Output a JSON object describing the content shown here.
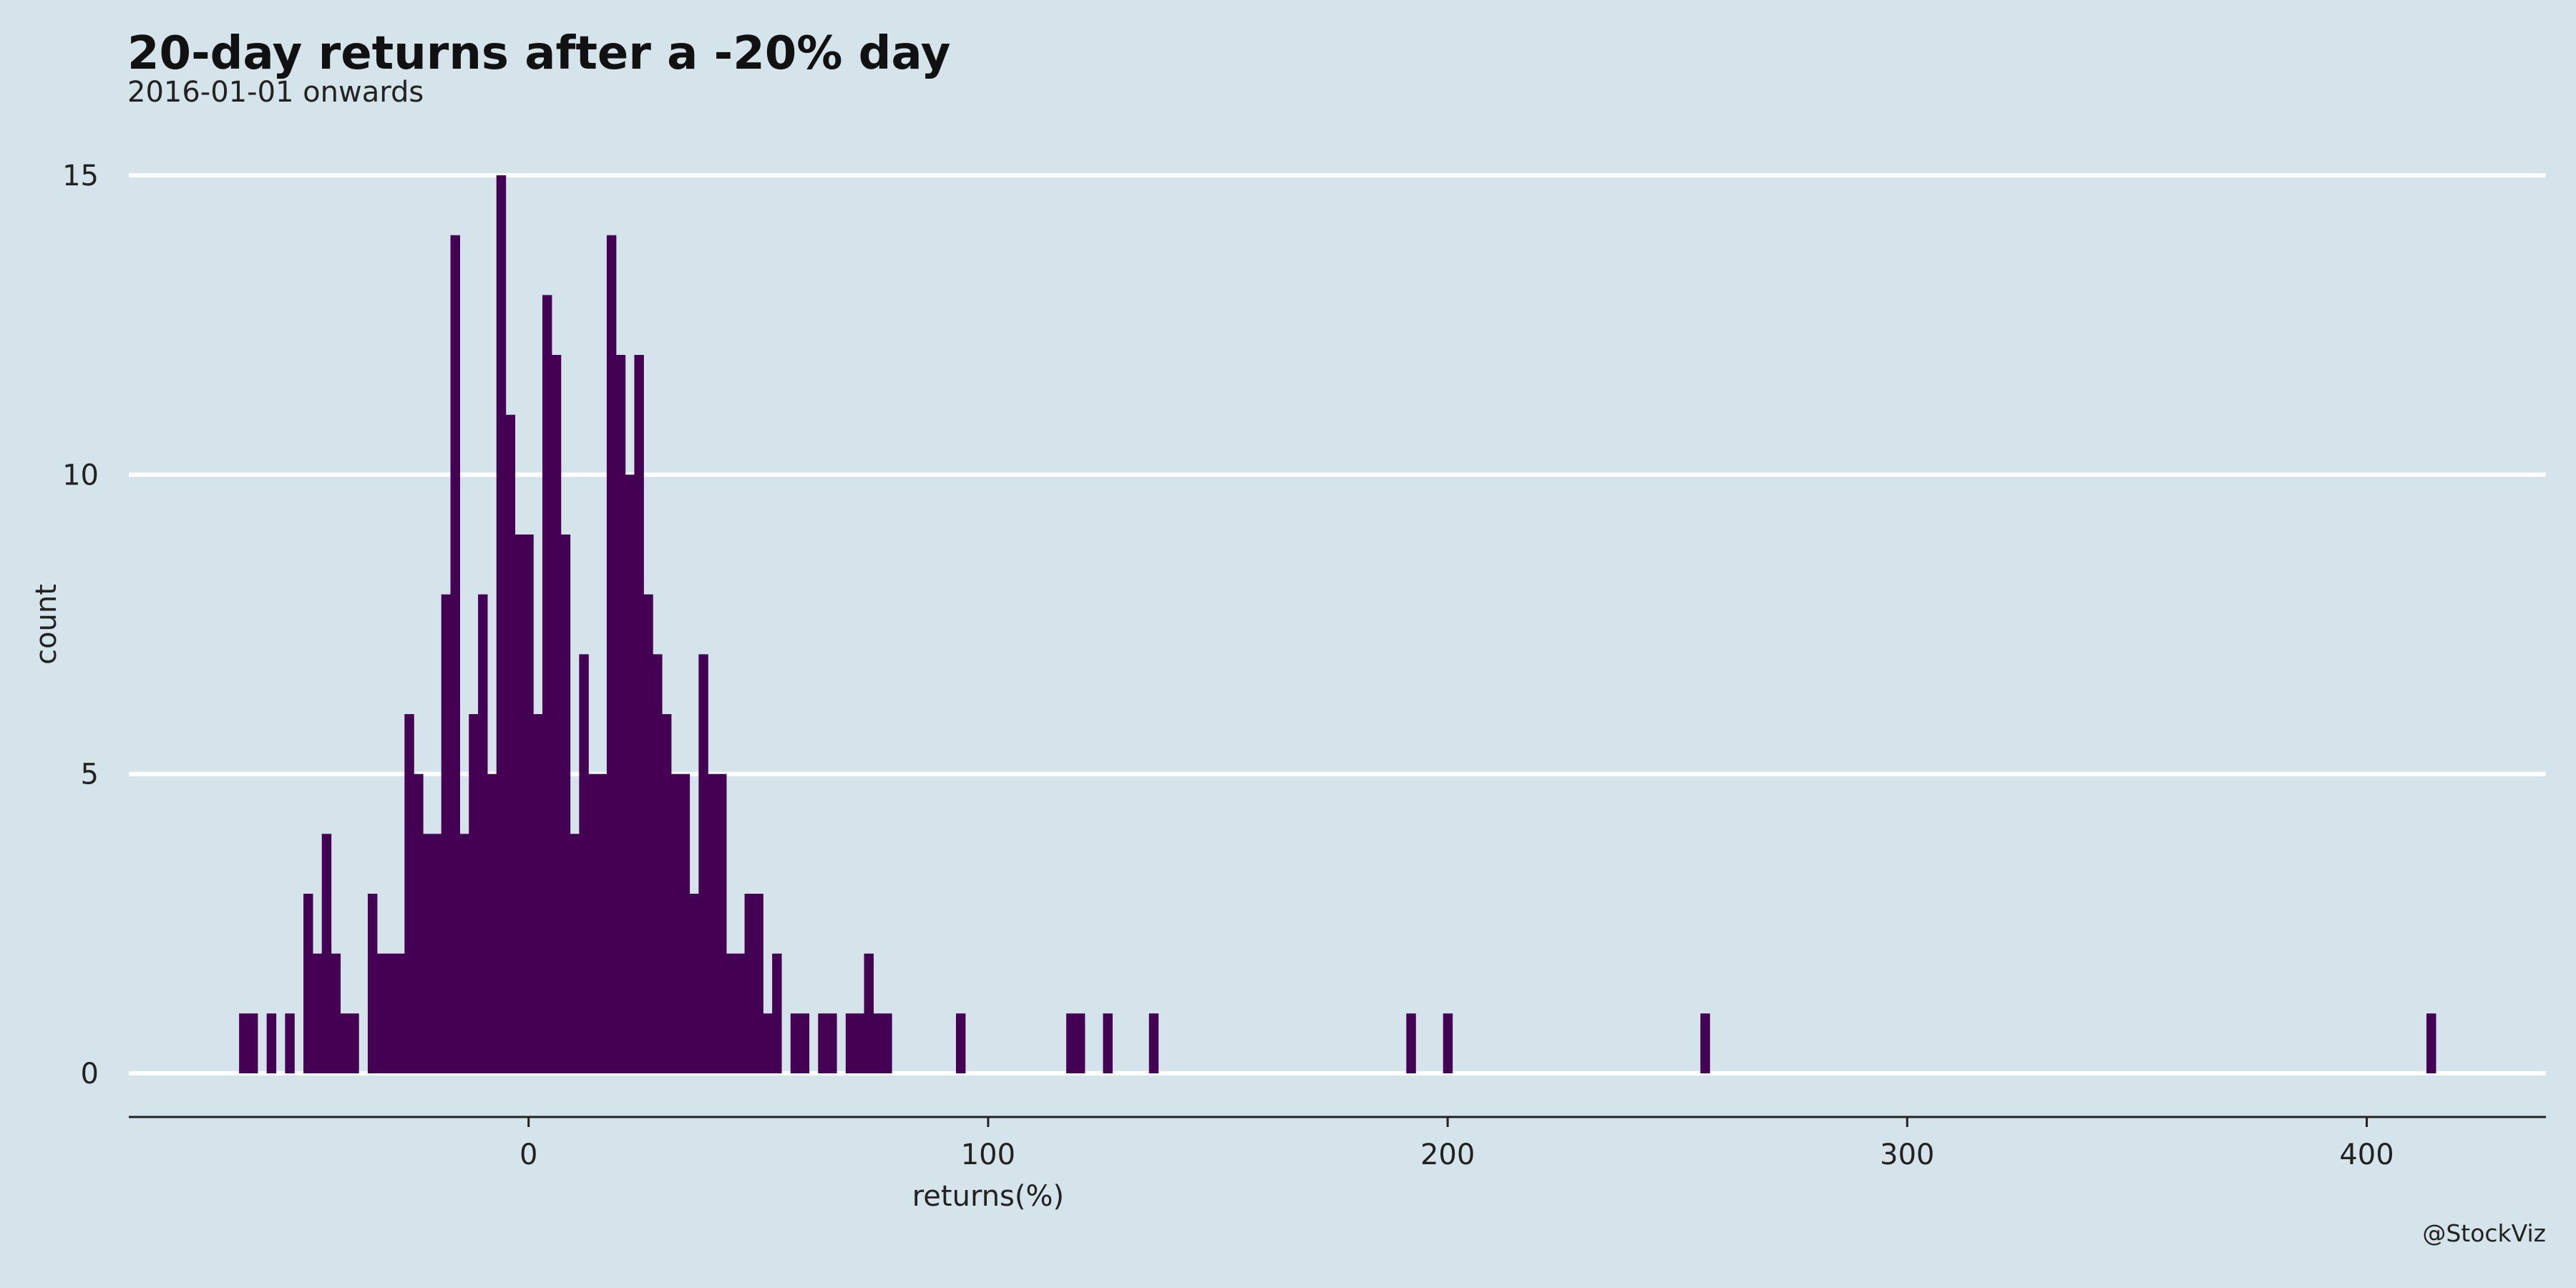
{
  "chart_data": {
    "type": "bar",
    "title": "20-day returns after a -20% day",
    "subtitle": "2016-01-01 onwards",
    "xlabel": "returns(%)",
    "ylabel": "count",
    "caption": "@StockViz",
    "xlim": [
      -87,
      439
    ],
    "ylim": [
      0,
      15
    ],
    "x_ticks": [
      0,
      100,
      200,
      300,
      400
    ],
    "y_ticks": [
      0,
      5,
      10,
      15
    ],
    "bin_width": 2,
    "grid": "horizontal",
    "bar_color": "#440154",
    "background_color": "#d5e4eb",
    "grid_color": "#ffffff",
    "bins": [
      {
        "x": -62,
        "count": 1
      },
      {
        "x": -60,
        "count": 1
      },
      {
        "x": -56,
        "count": 1
      },
      {
        "x": -52,
        "count": 1
      },
      {
        "x": -48,
        "count": 3
      },
      {
        "x": -46,
        "count": 2
      },
      {
        "x": -44,
        "count": 4
      },
      {
        "x": -42,
        "count": 2
      },
      {
        "x": -40,
        "count": 1
      },
      {
        "x": -38,
        "count": 1
      },
      {
        "x": -34,
        "count": 3
      },
      {
        "x": -32,
        "count": 2
      },
      {
        "x": -30,
        "count": 2
      },
      {
        "x": -28,
        "count": 2
      },
      {
        "x": -26,
        "count": 6
      },
      {
        "x": -24,
        "count": 5
      },
      {
        "x": -22,
        "count": 4
      },
      {
        "x": -20,
        "count": 4
      },
      {
        "x": -18,
        "count": 8
      },
      {
        "x": -16,
        "count": 14
      },
      {
        "x": -14,
        "count": 4
      },
      {
        "x": -12,
        "count": 6
      },
      {
        "x": -10,
        "count": 8
      },
      {
        "x": -8,
        "count": 5
      },
      {
        "x": -6,
        "count": 15
      },
      {
        "x": -4,
        "count": 11
      },
      {
        "x": -2,
        "count": 9
      },
      {
        "x": 0,
        "count": 9
      },
      {
        "x": 2,
        "count": 6
      },
      {
        "x": 4,
        "count": 13
      },
      {
        "x": 6,
        "count": 12
      },
      {
        "x": 8,
        "count": 9
      },
      {
        "x": 10,
        "count": 4
      },
      {
        "x": 12,
        "count": 7
      },
      {
        "x": 14,
        "count": 5
      },
      {
        "x": 16,
        "count": 5
      },
      {
        "x": 18,
        "count": 14
      },
      {
        "x": 20,
        "count": 12
      },
      {
        "x": 22,
        "count": 10
      },
      {
        "x": 24,
        "count": 12
      },
      {
        "x": 26,
        "count": 8
      },
      {
        "x": 28,
        "count": 7
      },
      {
        "x": 30,
        "count": 6
      },
      {
        "x": 32,
        "count": 5
      },
      {
        "x": 34,
        "count": 5
      },
      {
        "x": 36,
        "count": 3
      },
      {
        "x": 38,
        "count": 7
      },
      {
        "x": 40,
        "count": 5
      },
      {
        "x": 42,
        "count": 5
      },
      {
        "x": 44,
        "count": 2
      },
      {
        "x": 46,
        "count": 2
      },
      {
        "x": 48,
        "count": 3
      },
      {
        "x": 50,
        "count": 3
      },
      {
        "x": 52,
        "count": 1
      },
      {
        "x": 54,
        "count": 2
      },
      {
        "x": 58,
        "count": 1
      },
      {
        "x": 60,
        "count": 1
      },
      {
        "x": 64,
        "count": 1
      },
      {
        "x": 66,
        "count": 1
      },
      {
        "x": 70,
        "count": 1
      },
      {
        "x": 72,
        "count": 1
      },
      {
        "x": 74,
        "count": 2
      },
      {
        "x": 76,
        "count": 1
      },
      {
        "x": 78,
        "count": 1
      },
      {
        "x": 94,
        "count": 1
      },
      {
        "x": 118,
        "count": 1
      },
      {
        "x": 120,
        "count": 1
      },
      {
        "x": 126,
        "count": 1
      },
      {
        "x": 136,
        "count": 1
      },
      {
        "x": 192,
        "count": 1
      },
      {
        "x": 200,
        "count": 1
      },
      {
        "x": 256,
        "count": 1
      },
      {
        "x": 414,
        "count": 1
      }
    ]
  }
}
